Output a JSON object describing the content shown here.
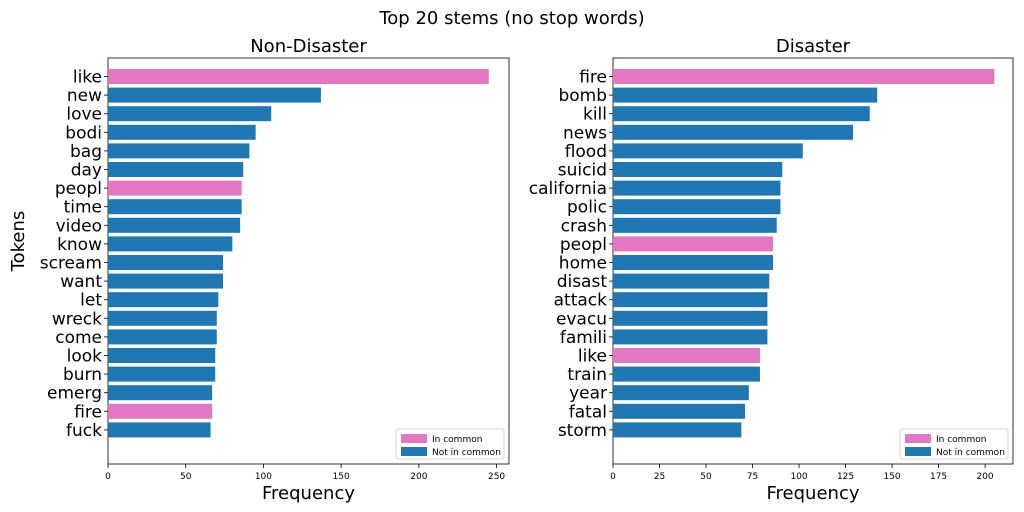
{
  "figure": {
    "suptitle": "Top 20 stems (no stop words)"
  },
  "colors": {
    "in_common": "#e377c2",
    "not_in_common": "#1f77b4"
  },
  "chart_data": [
    {
      "type": "bar",
      "orientation": "horizontal",
      "title": "Non-Disaster",
      "xlabel": "Frequency",
      "ylabel": "Tokens",
      "xlim": [
        0,
        258
      ],
      "xticks": [
        0,
        50,
        100,
        150,
        200,
        250
      ],
      "legend": {
        "position": "bottom-right",
        "labels": [
          "In common",
          "Not in common"
        ]
      },
      "categories": [
        "like",
        "new",
        "love",
        "bodi",
        "bag",
        "day",
        "peopl",
        "time",
        "video",
        "know",
        "scream",
        "want",
        "let",
        "wreck",
        "come",
        "look",
        "burn",
        "emerg",
        "fire",
        "fuck"
      ],
      "values": [
        245,
        137,
        105,
        95,
        91,
        87,
        86,
        86,
        85,
        80,
        74,
        74,
        71,
        70,
        70,
        69,
        69,
        67,
        67,
        66
      ],
      "in_common": [
        true,
        false,
        false,
        false,
        false,
        false,
        true,
        false,
        false,
        false,
        false,
        false,
        false,
        false,
        false,
        false,
        false,
        false,
        true,
        false
      ]
    },
    {
      "type": "bar",
      "orientation": "horizontal",
      "title": "Disaster",
      "xlabel": "Frequency",
      "ylabel": "",
      "xlim": [
        0,
        215
      ],
      "xticks": [
        0,
        25,
        50,
        75,
        100,
        125,
        150,
        175,
        200
      ],
      "legend": {
        "position": "bottom-right",
        "labels": [
          "In common",
          "Not in common"
        ]
      },
      "categories": [
        "fire",
        "bomb",
        "kill",
        "news",
        "flood",
        "suicid",
        "california",
        "polic",
        "crash",
        "peopl",
        "home",
        "disast",
        "attack",
        "evacu",
        "famili",
        "like",
        "train",
        "year",
        "fatal",
        "storm"
      ],
      "values": [
        205,
        142,
        138,
        129,
        102,
        91,
        90,
        90,
        88,
        86,
        86,
        84,
        83,
        83,
        83,
        79,
        79,
        73,
        71,
        69
      ],
      "in_common": [
        true,
        false,
        false,
        false,
        false,
        false,
        false,
        false,
        false,
        true,
        false,
        false,
        false,
        false,
        false,
        true,
        false,
        false,
        false,
        false
      ]
    }
  ]
}
